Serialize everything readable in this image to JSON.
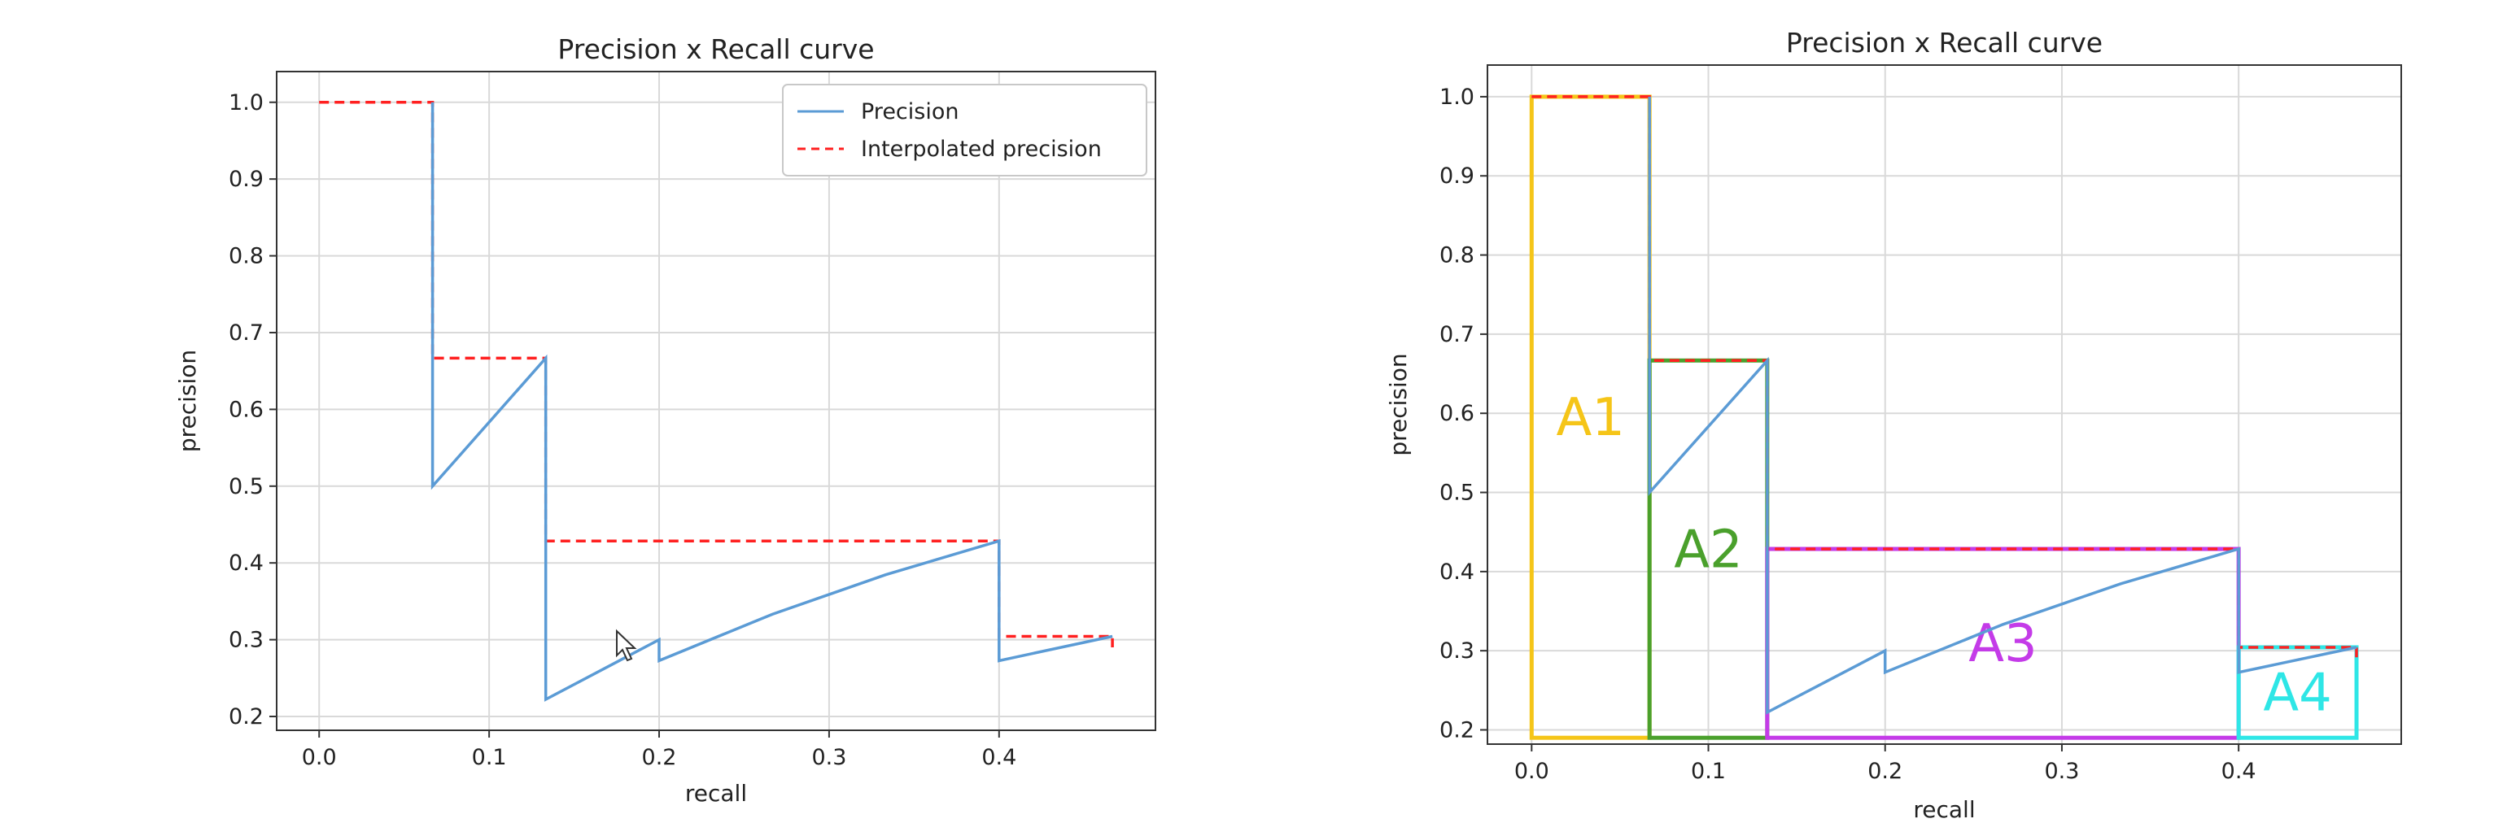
{
  "chart_data": [
    {
      "type": "line",
      "title": "Precision x Recall curve",
      "xlabel": "recall",
      "ylabel": "precision",
      "xlim": [
        -0.025,
        0.492
      ],
      "ylim": [
        0.182,
        1.04
      ],
      "xticks": [
        0.0,
        0.1,
        0.2,
        0.3,
        0.4
      ],
      "xtick_labels": [
        "0.0",
        "0.1",
        "0.2",
        "0.3",
        "0.4"
      ],
      "yticks": [
        0.2,
        0.3,
        0.4,
        0.5,
        0.6,
        0.7,
        0.8,
        0.9,
        1.0
      ],
      "ytick_labels": [
        "0.2",
        "0.3",
        "0.4",
        "0.5",
        "0.6",
        "0.7",
        "0.8",
        "0.9",
        "1.0"
      ],
      "grid": true,
      "legend": {
        "position": "top-right",
        "entries": [
          "Precision",
          "Interpolated precision"
        ]
      },
      "series": [
        {
          "name": "Precision",
          "color": "#5b9bd5",
          "style": "solid",
          "points": [
            [
              0.0667,
              1.0
            ],
            [
              0.0667,
              0.5
            ],
            [
              0.1333,
              0.6667
            ],
            [
              0.1333,
              0.2222
            ],
            [
              0.2,
              0.3
            ],
            [
              0.2,
              0.2727
            ],
            [
              0.2667,
              0.3333
            ],
            [
              0.3333,
              0.3846
            ],
            [
              0.4,
              0.4286
            ],
            [
              0.4,
              0.2727
            ],
            [
              0.4667,
              0.3043
            ]
          ]
        },
        {
          "name": "Interpolated precision",
          "color": "#ff2020",
          "style": "dashed",
          "points": [
            [
              0.0,
              1.0
            ],
            [
              0.0667,
              1.0
            ],
            [
              0.0667,
              0.6667
            ],
            [
              0.1333,
              0.6667
            ],
            [
              0.1333,
              0.4286
            ],
            [
              0.4,
              0.4286
            ],
            [
              0.4,
              0.3043
            ],
            [
              0.4667,
              0.3043
            ],
            [
              0.4667,
              0.29
            ]
          ]
        }
      ]
    },
    {
      "type": "line",
      "title": "Precision x Recall curve",
      "xlabel": "recall",
      "ylabel": "precision",
      "xlim": [
        -0.025,
        0.492
      ],
      "ylim": [
        0.182,
        1.04
      ],
      "xticks": [
        0.0,
        0.1,
        0.2,
        0.3,
        0.4
      ],
      "xtick_labels": [
        "0.0",
        "0.1",
        "0.2",
        "0.3",
        "0.4"
      ],
      "yticks": [
        0.2,
        0.3,
        0.4,
        0.5,
        0.6,
        0.7,
        0.8,
        0.9,
        1.0
      ],
      "ytick_labels": [
        "0.2",
        "0.3",
        "0.4",
        "0.5",
        "0.6",
        "0.7",
        "0.8",
        "0.9",
        "1.0"
      ],
      "grid": true,
      "series": [
        {
          "name": "Precision",
          "color": "#5b9bd5",
          "style": "solid",
          "points": [
            [
              0.0667,
              1.0
            ],
            [
              0.0667,
              0.5
            ],
            [
              0.1333,
              0.6667
            ],
            [
              0.1333,
              0.2222
            ],
            [
              0.2,
              0.3
            ],
            [
              0.2,
              0.2727
            ],
            [
              0.2667,
              0.3333
            ],
            [
              0.3333,
              0.3846
            ],
            [
              0.4,
              0.4286
            ],
            [
              0.4,
              0.2727
            ],
            [
              0.4667,
              0.3043
            ]
          ]
        },
        {
          "name": "Interpolated precision",
          "color": "#ff2020",
          "style": "dashed",
          "points": [
            [
              0.0,
              1.0
            ],
            [
              0.0667,
              1.0
            ],
            [
              0.0667,
              0.6667
            ],
            [
              0.1333,
              0.6667
            ],
            [
              0.1333,
              0.4286
            ],
            [
              0.4,
              0.4286
            ],
            [
              0.4,
              0.3043
            ],
            [
              0.4667,
              0.3043
            ],
            [
              0.4667,
              0.29
            ]
          ]
        }
      ],
      "areas": [
        {
          "label": "A1",
          "color": "#f5c518",
          "x": [
            0.0,
            0.0667
          ],
          "y": [
            0.19,
            1.0
          ]
        },
        {
          "label": "A2",
          "color": "#4aa02c",
          "x": [
            0.0667,
            0.1333
          ],
          "y": [
            0.19,
            0.6667
          ]
        },
        {
          "label": "A3",
          "color": "#c43be8",
          "x": [
            0.1333,
            0.4
          ],
          "y": [
            0.19,
            0.4286
          ]
        },
        {
          "label": "A4",
          "color": "#2ee6e6",
          "x": [
            0.4,
            0.4667
          ],
          "y": [
            0.19,
            0.3043
          ]
        }
      ]
    }
  ]
}
